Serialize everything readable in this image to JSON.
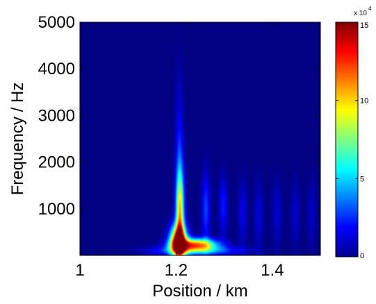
{
  "chart_data": {
    "type": "heatmap",
    "title": "",
    "xlabel": "Position / km",
    "ylabel": "Frequency / Hz",
    "xlim": [
      1.0,
      1.5
    ],
    "ylim": [
      0,
      5000
    ],
    "x_ticks": [
      {
        "value": 1.0,
        "label": "1"
      },
      {
        "value": 1.2,
        "label": "1.2"
      },
      {
        "value": 1.4,
        "label": "1.4"
      }
    ],
    "y_ticks": [
      {
        "value": 1000,
        "label": "1000"
      },
      {
        "value": 2000,
        "label": "2000"
      },
      {
        "value": 3000,
        "label": "3000"
      },
      {
        "value": 4000,
        "label": "4000"
      },
      {
        "value": 5000,
        "label": "5000"
      }
    ],
    "colormap": "jet",
    "colorbar": {
      "range": [
        0,
        150000
      ],
      "exponent_label": "x 10",
      "exponent_power": "4",
      "ticks": [
        {
          "value": 0,
          "label": "0"
        },
        {
          "value": 50000,
          "label": "5"
        },
        {
          "value": 100000,
          "label": "10"
        },
        {
          "value": 150000,
          "label": "15"
        }
      ]
    },
    "grid": false,
    "features": [
      {
        "name": "main-peak",
        "x_center": 1.205,
        "x_width": 0.012,
        "y_center": 300,
        "y_width": 230,
        "amplitude": 150000
      },
      {
        "name": "main-peak-tail",
        "x_center": 1.24,
        "x_width": 0.03,
        "y_center": 230,
        "y_width": 90,
        "amplitude": 115000
      },
      {
        "name": "main-peak-ridge",
        "x_center": 1.208,
        "x_width": 0.006,
        "y_center": 900,
        "y_width": 650,
        "amplitude": 90000
      },
      {
        "name": "upper-plume",
        "x_center": 1.207,
        "x_width": 0.0055,
        "y_center": 2000,
        "y_width": 1200,
        "amplitude": 22000
      },
      {
        "name": "base-band",
        "x_center": 1.24,
        "x_width": 0.06,
        "y_center": 100,
        "y_width": 70,
        "amplitude": 42000
      },
      {
        "name": "secondary-1",
        "x_center": 1.262,
        "x_width": 0.006,
        "y_center": 1000,
        "y_width": 550,
        "amplitude": 28000
      },
      {
        "name": "secondary-2",
        "x_center": 1.298,
        "x_width": 0.006,
        "y_center": 1050,
        "y_width": 450,
        "amplitude": 22000
      },
      {
        "name": "secondary-3",
        "x_center": 1.338,
        "x_width": 0.006,
        "y_center": 900,
        "y_width": 500,
        "amplitude": 16000
      },
      {
        "name": "secondary-4",
        "x_center": 1.372,
        "x_width": 0.006,
        "y_center": 850,
        "y_width": 500,
        "amplitude": 14000
      },
      {
        "name": "secondary-5",
        "x_center": 1.41,
        "x_width": 0.006,
        "y_center": 900,
        "y_width": 500,
        "amplitude": 13000
      },
      {
        "name": "secondary-6",
        "x_center": 1.448,
        "x_width": 0.006,
        "y_center": 900,
        "y_width": 500,
        "amplitude": 12000
      },
      {
        "name": "secondary-7",
        "x_center": 1.482,
        "x_width": 0.006,
        "y_center": 900,
        "y_width": 500,
        "amplitude": 11000
      }
    ]
  }
}
